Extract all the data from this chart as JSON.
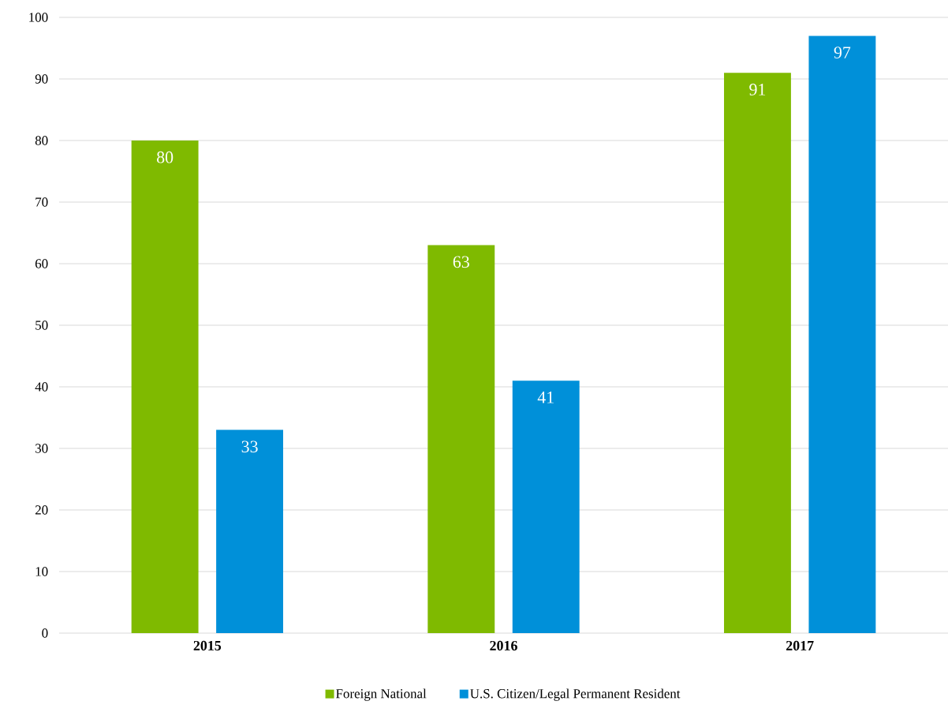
{
  "chart_data": {
    "type": "bar",
    "categories": [
      "2015",
      "2016",
      "2017"
    ],
    "series": [
      {
        "name": "Foreign National",
        "color": "#7fba00",
        "values": [
          80,
          63,
          91
        ]
      },
      {
        "name": "U.S. Citizen/Legal Permanent Resident",
        "color": "#0090d9",
        "values": [
          33,
          41,
          97
        ]
      }
    ],
    "ylim": [
      0,
      100
    ],
    "yticks": [
      0,
      10,
      20,
      30,
      40,
      50,
      60,
      70,
      80,
      90,
      100
    ],
    "grid": "y",
    "legend": "bottom",
    "data_labels": true
  }
}
